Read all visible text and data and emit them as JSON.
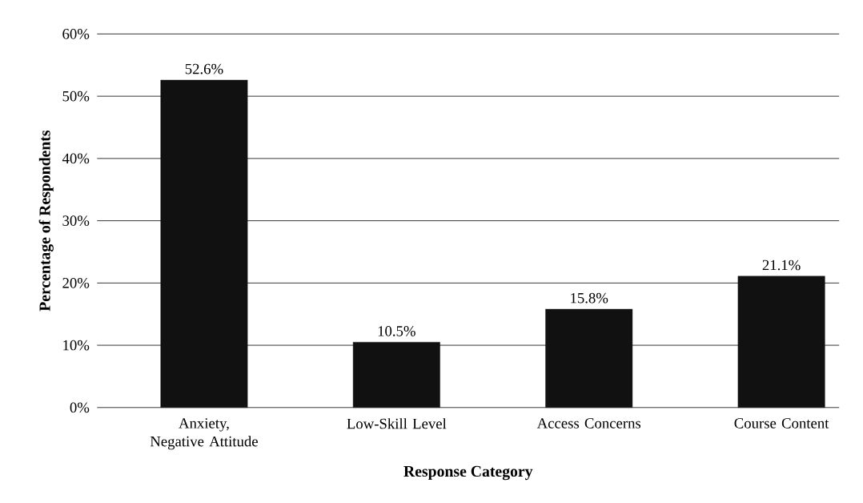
{
  "chart_data": {
    "type": "bar",
    "xlabel": "Response Category",
    "ylabel": "Percentage of Respondents",
    "categories": [
      "Anxiety, Negative Attitude",
      "Low-Skill Level",
      "Access Concerns",
      "Course Content"
    ],
    "values": [
      52.6,
      10.5,
      15.8,
      21.1
    ],
    "value_labels": [
      "52.6%",
      "10.5%",
      "15.8%",
      "21.1%"
    ],
    "color": "#111111",
    "ylim": [
      0,
      60
    ],
    "yticks": [
      {
        "value": 0,
        "label": "0%"
      },
      {
        "value": 10,
        "label": "10%"
      },
      {
        "value": 20,
        "label": "20%"
      },
      {
        "value": 30,
        "label": "30%"
      },
      {
        "value": 40,
        "label": "40%"
      },
      {
        "value": 50,
        "label": "50%"
      },
      {
        "value": 60,
        "label": "60%"
      }
    ],
    "grid": "y"
  }
}
